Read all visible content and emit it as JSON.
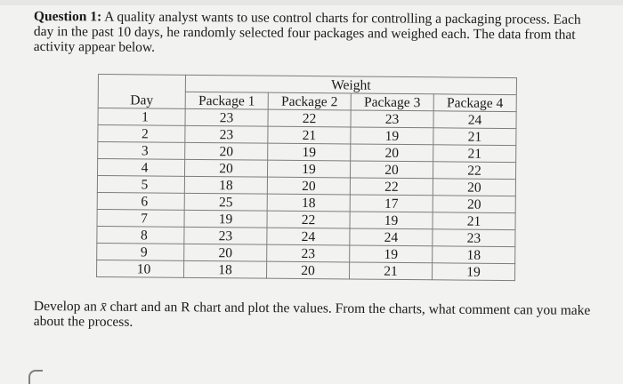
{
  "question": {
    "label": "Question 1:",
    "text": "A quality analyst wants to use control charts for controlling a packaging process. Each day in the past 10 days, he randomly selected four packages and weighed each. The data from that activity appear below."
  },
  "table": {
    "group_header": "Weight",
    "day_header": "Day",
    "package_headers": [
      "Package 1",
      "Package 2",
      "Package 3",
      "Package 4"
    ],
    "rows": [
      {
        "day": "1",
        "values": [
          "23",
          "22",
          "23",
          "24"
        ]
      },
      {
        "day": "2",
        "values": [
          "23",
          "21",
          "19",
          "21"
        ]
      },
      {
        "day": "3",
        "values": [
          "20",
          "19",
          "20",
          "21"
        ]
      },
      {
        "day": "4",
        "values": [
          "20",
          "19",
          "20",
          "22"
        ]
      },
      {
        "day": "5",
        "values": [
          "18",
          "20",
          "22",
          "20"
        ]
      },
      {
        "day": "6",
        "values": [
          "25",
          "18",
          "17",
          "20"
        ]
      },
      {
        "day": "7",
        "values": [
          "19",
          "22",
          "19",
          "21"
        ]
      },
      {
        "day": "8",
        "values": [
          "23",
          "24",
          "24",
          "23"
        ]
      },
      {
        "day": "9",
        "values": [
          "20",
          "23",
          "19",
          "18"
        ]
      },
      {
        "day": "10",
        "values": [
          "18",
          "20",
          "21",
          "19"
        ]
      }
    ]
  },
  "closing": {
    "text_before": "Develop an ",
    "xbar": "x̄",
    "text_after": " chart and an R chart and plot the values. From the charts, what comment can you make about the process."
  }
}
